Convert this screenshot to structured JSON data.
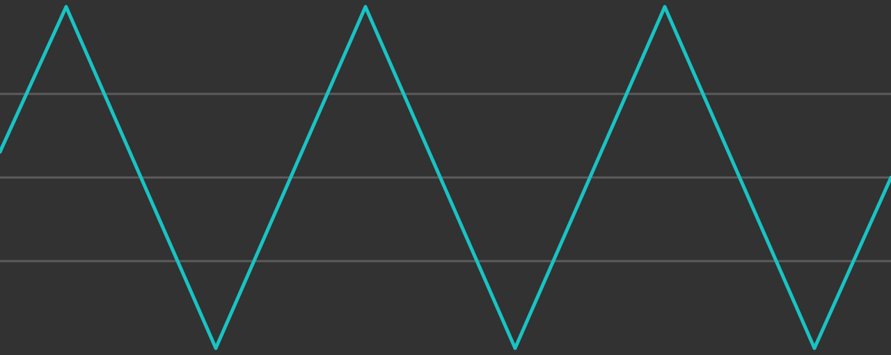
{
  "chart_data": {
    "type": "line",
    "title": "",
    "xlabel": "",
    "ylabel": "",
    "xlim": [
      0,
      1280
    ],
    "ylim": [
      -1.04,
      1.04
    ],
    "grid": true,
    "gridlines_y": [
      0.49,
      0.0,
      -0.49
    ],
    "legend": "none",
    "series": [
      {
        "x": [
          0,
          95,
          310,
          525,
          740,
          955,
          1170,
          1280
        ],
        "values": [
          0.15,
          1.0,
          -1.0,
          1.0,
          -1.0,
          1.0,
          -1.0,
          0.0
        ]
      }
    ]
  },
  "colors": {
    "background": "#323232",
    "grid": "#5c5c5c",
    "trace": "#19c3c3"
  }
}
